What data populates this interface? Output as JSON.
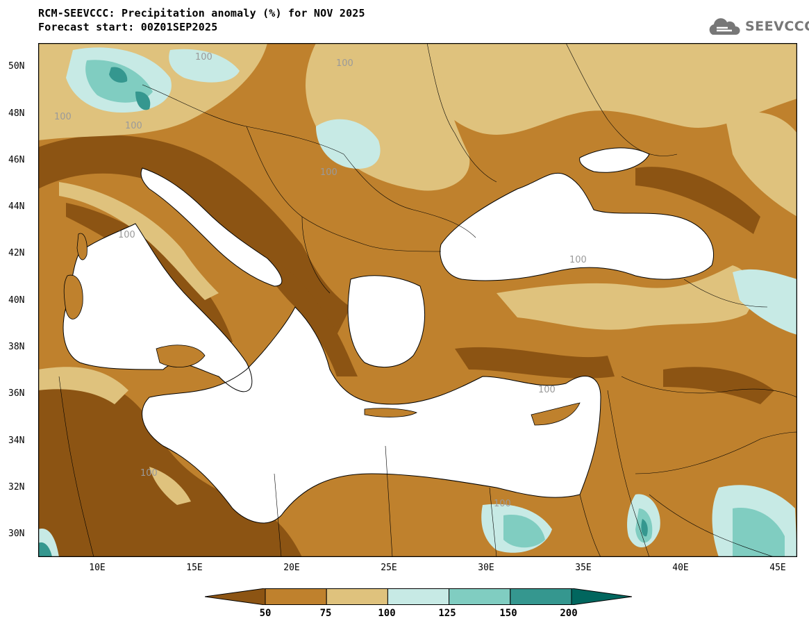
{
  "header": {
    "title_line1": "RCM-SEEVCCC: Precipitation anomaly (%) for NOV 2025",
    "title_line2": "Forecast start: 00Z01SEP2025"
  },
  "logo": {
    "text": "SEEVCCC",
    "icon": "cloud-logo-icon"
  },
  "map": {
    "lon_range": [
      7,
      46
    ],
    "lat_range": [
      29,
      51
    ],
    "lat_labels": [
      "50N",
      "48N",
      "46N",
      "44N",
      "42N",
      "40N",
      "38N",
      "36N",
      "34N",
      "32N",
      "30N"
    ],
    "lon_labels": [
      "10E",
      "15E",
      "20E",
      "25E",
      "30E",
      "35E",
      "40E",
      "45E"
    ],
    "contour_label": "100",
    "sea_color": "#ffffff"
  },
  "legend": {
    "thresholds": [
      "50",
      "75",
      "100",
      "125",
      "150",
      "200"
    ],
    "colors": [
      "#8c5413",
      "#bf812d",
      "#dfc27d",
      "#c7eae5",
      "#80cdc1",
      "#35978f",
      "#01665e"
    ]
  }
}
